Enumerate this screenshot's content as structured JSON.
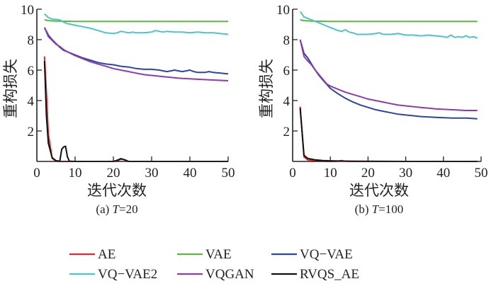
{
  "chart_data": [
    {
      "type": "line",
      "caption_prefix": "(a) ",
      "caption_var": "T",
      "caption_suffix": "=20",
      "xlabel": "迭代次数",
      "ylabel": "重构损失",
      "xlim": [
        0,
        50
      ],
      "ylim": [
        0,
        10
      ],
      "xticks": [
        "0",
        "10",
        "20",
        "30",
        "40",
        "50"
      ],
      "yticks": [
        "2",
        "4",
        "6",
        "8",
        "10"
      ],
      "series": [
        {
          "name": "VAE",
          "color": "#5cb83c",
          "x": [
            2,
            3,
            5,
            10,
            20,
            30,
            40,
            50
          ],
          "y": [
            9.3,
            9.25,
            9.22,
            9.2,
            9.2,
            9.2,
            9.2,
            9.2
          ]
        },
        {
          "name": "VQ-VAE2",
          "color": "#4ec3cf",
          "x": [
            2,
            3,
            4,
            5,
            6,
            7,
            8,
            10,
            12,
            14,
            16,
            18,
            20,
            21,
            22,
            23,
            24,
            25,
            26,
            28,
            30,
            31,
            32,
            33,
            34,
            36,
            38,
            40,
            42,
            44,
            46,
            48,
            50
          ],
          "y": [
            9.7,
            9.45,
            9.35,
            9.33,
            9.3,
            9.15,
            9.05,
            8.95,
            8.85,
            8.75,
            8.6,
            8.45,
            8.4,
            8.45,
            8.55,
            8.5,
            8.45,
            8.5,
            8.45,
            8.45,
            8.5,
            8.6,
            8.55,
            8.5,
            8.55,
            8.5,
            8.5,
            8.45,
            8.5,
            8.45,
            8.45,
            8.4,
            8.35
          ]
        },
        {
          "name": "VQ-VAE",
          "color": "#2b46a6",
          "x": [
            2,
            3,
            4,
            5,
            6,
            7,
            8,
            10,
            12,
            14,
            16,
            18,
            20,
            22,
            24,
            26,
            28,
            30,
            32,
            34,
            35,
            36,
            37,
            38,
            39,
            40,
            41,
            42,
            44,
            45,
            46,
            48,
            50
          ],
          "y": [
            8.8,
            8.3,
            8.0,
            7.75,
            7.5,
            7.3,
            7.2,
            7.0,
            6.8,
            6.65,
            6.5,
            6.4,
            6.35,
            6.25,
            6.2,
            6.1,
            6.05,
            6.05,
            6.0,
            5.9,
            5.95,
            6.0,
            5.95,
            5.9,
            5.95,
            6.0,
            5.9,
            5.85,
            5.85,
            5.9,
            5.85,
            5.8,
            5.75
          ]
        },
        {
          "name": "VQGAN",
          "color": "#8e3bab",
          "x": [
            2,
            3,
            4,
            5,
            6,
            7,
            8,
            10,
            12,
            14,
            16,
            18,
            20,
            22,
            24,
            26,
            28,
            30,
            34,
            38,
            42,
            46,
            50
          ],
          "y": [
            8.8,
            8.2,
            7.95,
            7.7,
            7.55,
            7.35,
            7.2,
            6.95,
            6.75,
            6.55,
            6.4,
            6.25,
            6.1,
            6.0,
            5.9,
            5.8,
            5.7,
            5.65,
            5.55,
            5.45,
            5.4,
            5.35,
            5.3
          ]
        },
        {
          "name": "AE",
          "color": "#e8272a",
          "x": [
            2,
            2.5,
            3,
            4,
            5,
            6,
            8,
            10,
            20,
            21,
            22,
            23,
            24,
            30,
            40,
            50
          ],
          "y": [
            6.9,
            4.5,
            1.8,
            0.2,
            0.02,
            0,
            0,
            0,
            0,
            0.05,
            0.15,
            0.1,
            0,
            0,
            0,
            0
          ]
        },
        {
          "name": "RVQS_AE",
          "color": "#111111",
          "x": [
            2,
            2.5,
            3,
            4,
            5,
            6,
            6.5,
            7,
            7.5,
            8,
            8.5,
            10,
            20,
            21,
            22,
            23,
            24,
            30,
            40,
            50
          ],
          "y": [
            6.6,
            3.0,
            1.2,
            0.25,
            0.05,
            0.02,
            0.8,
            0.95,
            1.0,
            0.3,
            0.02,
            0,
            0,
            0.08,
            0.18,
            0.1,
            0,
            0,
            0,
            0
          ]
        }
      ]
    },
    {
      "type": "line",
      "caption_prefix": "(b) ",
      "caption_var": "T",
      "caption_suffix": "=100",
      "xlabel": "迭代次数",
      "ylabel": "重构损失",
      "xlim": [
        0,
        50
      ],
      "ylim": [
        0,
        10
      ],
      "xticks": [
        "0",
        "10",
        "20",
        "30",
        "40",
        "50"
      ],
      "yticks": [
        "2",
        "4",
        "6",
        "8",
        "10"
      ],
      "series": [
        {
          "name": "VAE",
          "color": "#5cb83c",
          "x": [
            2,
            3,
            5,
            10,
            20,
            30,
            40,
            49
          ],
          "y": [
            9.3,
            9.25,
            9.22,
            9.2,
            9.2,
            9.2,
            9.2,
            9.2
          ]
        },
        {
          "name": "VQ-VAE2",
          "color": "#4ec3cf",
          "x": [
            2,
            3,
            4,
            5,
            6,
            8,
            10,
            12,
            13,
            14,
            15,
            16,
            17,
            18,
            20,
            22,
            23,
            24,
            26,
            28,
            30,
            32,
            34,
            36,
            38,
            40,
            41,
            42,
            43,
            44,
            45,
            46,
            47,
            48,
            49
          ],
          "y": [
            9.85,
            9.5,
            9.4,
            9.3,
            9.2,
            9.0,
            8.8,
            8.6,
            8.55,
            8.65,
            8.5,
            8.45,
            8.35,
            8.35,
            8.35,
            8.4,
            8.45,
            8.35,
            8.35,
            8.4,
            8.3,
            8.3,
            8.25,
            8.3,
            8.25,
            8.2,
            8.15,
            8.3,
            8.15,
            8.2,
            8.15,
            8.25,
            8.15,
            8.2,
            8.1
          ]
        },
        {
          "name": "VQ-VAE",
          "color": "#2b46a6",
          "x": [
            2,
            3,
            4,
            5,
            6,
            7,
            8,
            10,
            12,
            14,
            16,
            18,
            20,
            22,
            24,
            26,
            28,
            30,
            34,
            38,
            42,
            46,
            49
          ],
          "y": [
            8.0,
            7.1,
            6.8,
            6.4,
            6.0,
            5.65,
            5.35,
            4.8,
            4.45,
            4.15,
            3.9,
            3.7,
            3.55,
            3.4,
            3.3,
            3.2,
            3.1,
            3.05,
            2.95,
            2.9,
            2.85,
            2.85,
            2.8
          ]
        },
        {
          "name": "VQGAN",
          "color": "#8e3bab",
          "x": [
            2,
            3,
            4,
            5,
            6,
            7,
            8,
            9,
            10,
            12,
            14,
            16,
            18,
            20,
            22,
            24,
            26,
            28,
            30,
            34,
            38,
            42,
            46,
            49
          ],
          "y": [
            8.0,
            6.9,
            6.6,
            6.35,
            6.0,
            5.7,
            5.4,
            5.1,
            4.95,
            4.75,
            4.55,
            4.4,
            4.25,
            4.1,
            4.0,
            3.9,
            3.8,
            3.7,
            3.65,
            3.55,
            3.45,
            3.4,
            3.35,
            3.35
          ]
        },
        {
          "name": "AE",
          "color": "#e8272a",
          "x": [
            2,
            3,
            4,
            6,
            8,
            10,
            12,
            13,
            14,
            16,
            20,
            30,
            40,
            49
          ],
          "y": [
            3.6,
            0.3,
            0.1,
            0.05,
            0.02,
            0,
            0.02,
            0.06,
            0.01,
            0,
            0,
            0,
            0,
            0
          ]
        },
        {
          "name": "RVQS_AE",
          "color": "#111111",
          "x": [
            2,
            3,
            4,
            6,
            8,
            10,
            15,
            20,
            30,
            40,
            49
          ],
          "y": [
            3.5,
            0.4,
            0.2,
            0.1,
            0.06,
            0.04,
            0.02,
            0.01,
            0,
            0,
            0
          ]
        }
      ]
    }
  ],
  "legend": [
    {
      "name": "AE",
      "color": "#e8272a"
    },
    {
      "name": "VAE",
      "color": "#5cb83c"
    },
    {
      "name": "VQ−VAE",
      "color": "#2b46a6"
    },
    {
      "name": "VQ−VAE2",
      "color": "#4ec3cf"
    },
    {
      "name": "VQGAN",
      "color": "#8e3bab"
    },
    {
      "name": "RVQS_AE",
      "color": "#111111"
    }
  ]
}
